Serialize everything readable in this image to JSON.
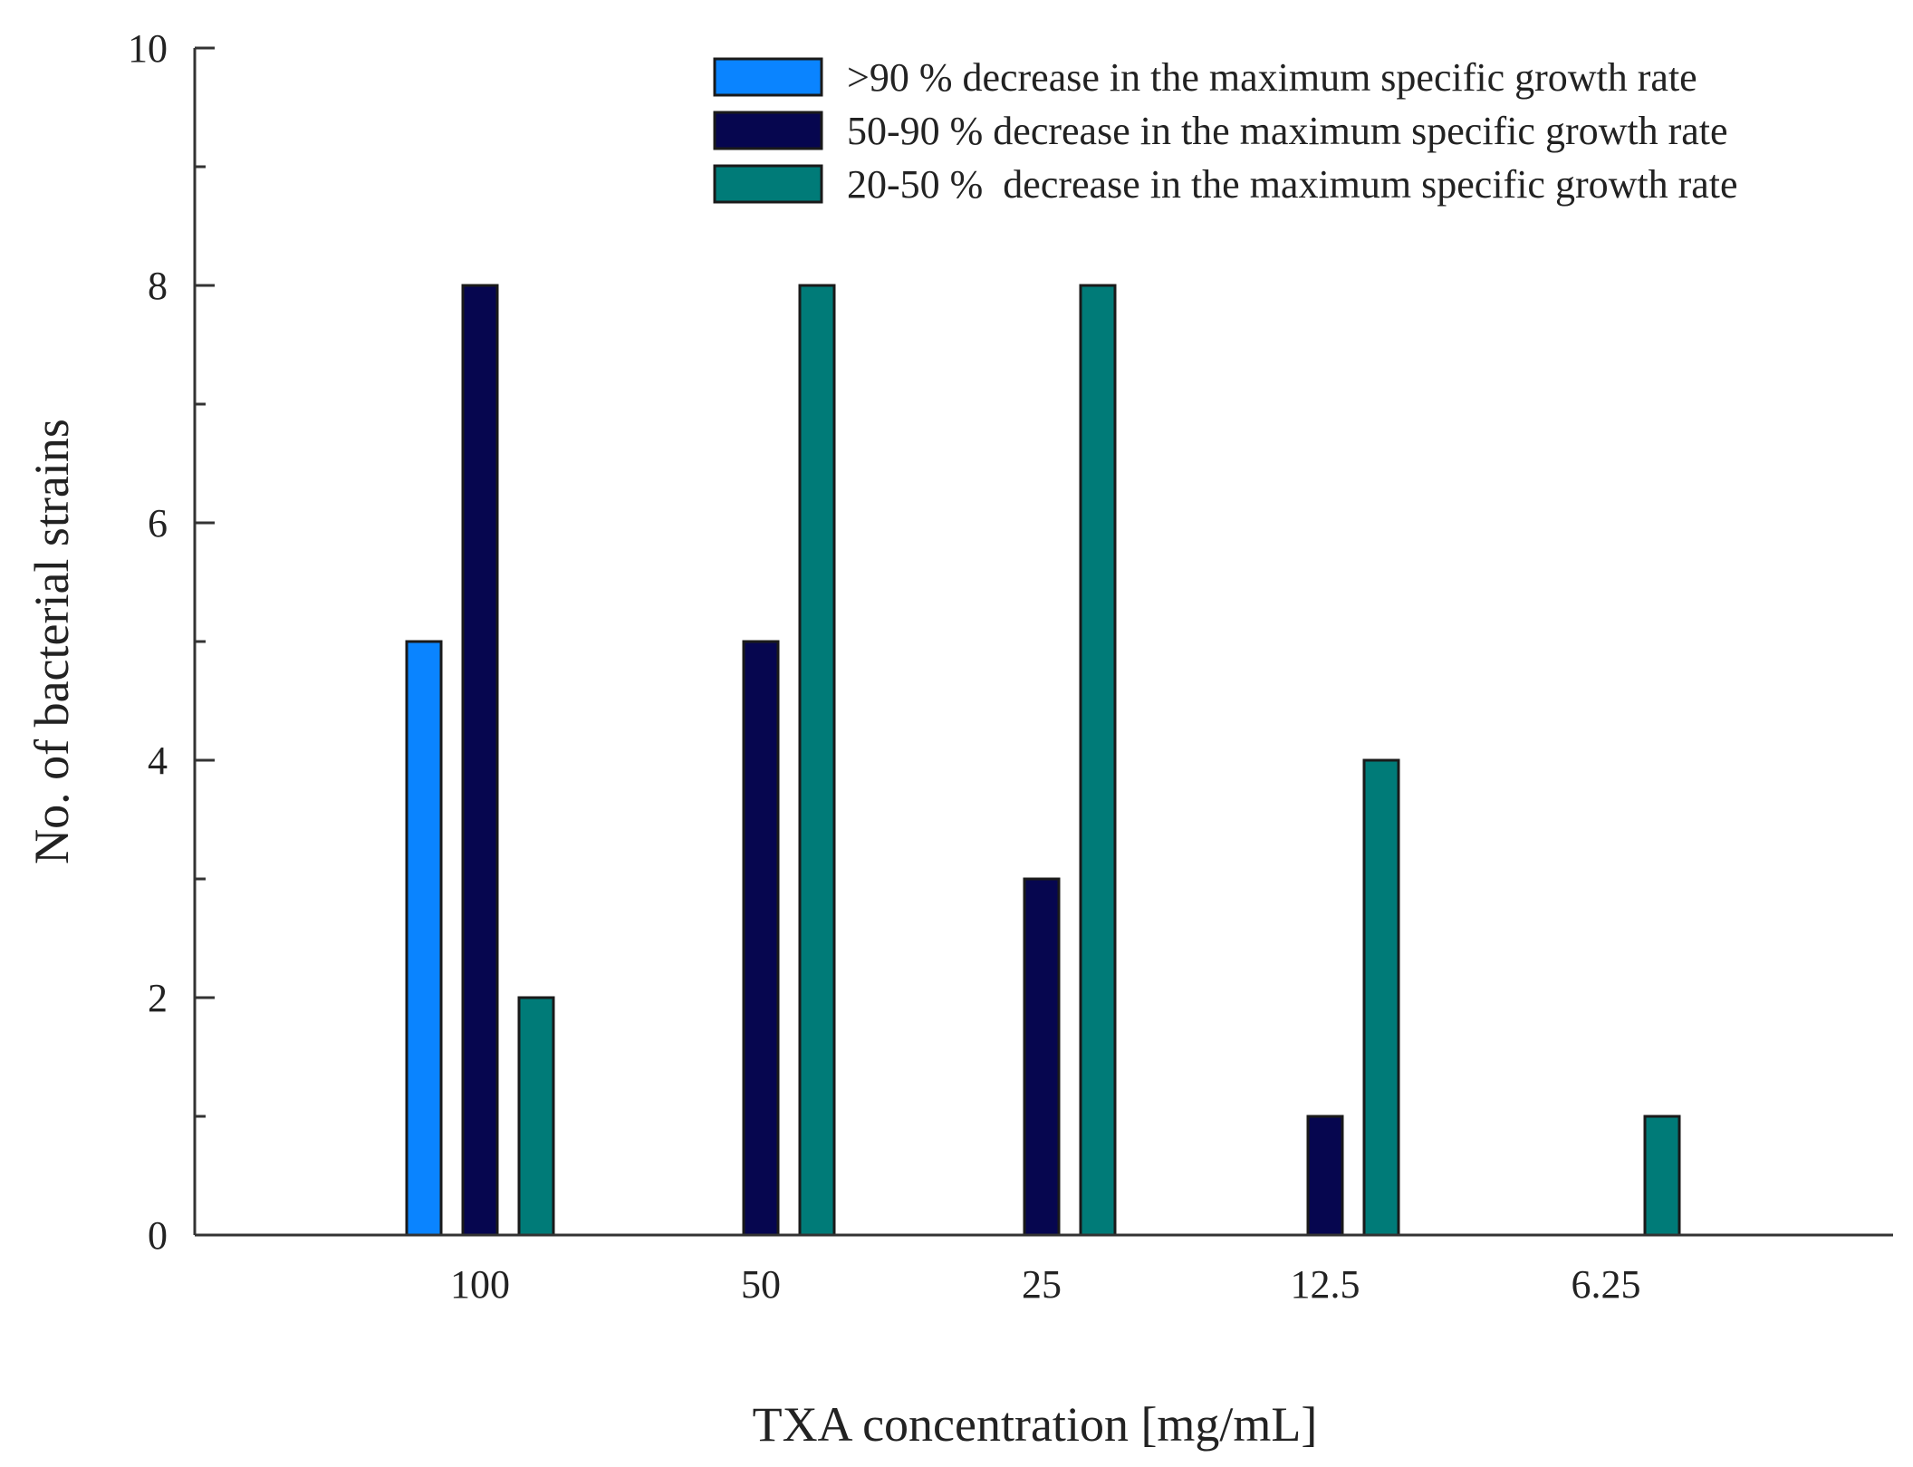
{
  "chart_data": {
    "type": "bar",
    "xlabel": "TXA concentration [mg/mL]",
    "ylabel": "No. of bacterial strains",
    "categories": [
      "100",
      "50",
      "25",
      "12.5",
      "6.25"
    ],
    "ylim": [
      0,
      10
    ],
    "yticks": [
      0,
      2,
      4,
      6,
      8,
      10
    ],
    "grid": false,
    "legend_position": "top-right",
    "series": [
      {
        "name": ">90 % decrease in the maximum specific growth rate",
        "color": "#0a84ff",
        "values": [
          5,
          0,
          0,
          0,
          0
        ]
      },
      {
        "name": "50-90 % decrease in the maximum specific growth rate",
        "color": "#06064f",
        "values": [
          8,
          5,
          3,
          1,
          0
        ]
      },
      {
        "name": "20-50 %  decrease in the maximum specific growth rate",
        "color": "#007b78",
        "values": [
          2,
          8,
          8,
          4,
          1
        ]
      }
    ]
  }
}
